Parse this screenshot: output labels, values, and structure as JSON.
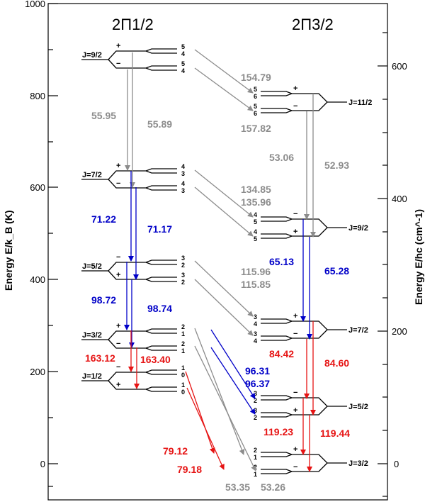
{
  "axes": {
    "left_title": "Energy E/k_B (K)",
    "left_ticks": [
      "1000",
      "800",
      "600",
      "400",
      "200",
      "0"
    ],
    "right_title": "Energy E/hc (cm^-1)",
    "right_ticks": [
      "600",
      "400",
      "200",
      "0"
    ]
  },
  "ladders": {
    "left": {
      "title": "2Π1/2",
      "levels": [
        {
          "label": "J=9/2",
          "upper_parity": "+",
          "lower_parity": "−",
          "upper_hf": [
            "5",
            "4"
          ],
          "lower_hf": [
            "5",
            "4"
          ]
        },
        {
          "label": "J=7/2",
          "upper_parity": "+",
          "lower_parity": "−",
          "upper_hf": [
            "4",
            "3"
          ],
          "lower_hf": [
            "4",
            "3"
          ]
        },
        {
          "label": "J=5/2",
          "upper_parity": "−",
          "lower_parity": "+",
          "upper_hf": [
            "3",
            "2"
          ],
          "lower_hf": [
            "3",
            "2"
          ]
        },
        {
          "label": "J=3/2",
          "upper_parity": "+",
          "lower_parity": "−",
          "upper_hf": [
            "2",
            "1"
          ],
          "lower_hf": [
            "2",
            "1"
          ]
        },
        {
          "label": "J=1/2",
          "upper_parity": "−",
          "lower_parity": "+",
          "upper_hf": [
            "1",
            "0"
          ],
          "lower_hf": [
            "1",
            "0"
          ]
        }
      ]
    },
    "right": {
      "title": "2Π3/2",
      "levels": [
        {
          "label": "J=11/2",
          "upper_parity": "+",
          "lower_parity": "−",
          "upper_hf": [
            "5",
            "6"
          ],
          "lower_hf": [
            "5",
            "6"
          ]
        },
        {
          "label": "J=9/2",
          "upper_parity": "−",
          "lower_parity": "+",
          "upper_hf": [
            "4",
            "5"
          ],
          "lower_hf": [
            "4",
            "5"
          ]
        },
        {
          "label": "J=7/2",
          "upper_parity": "+",
          "lower_parity": "−",
          "upper_hf": [
            "3",
            "4"
          ],
          "lower_hf": [
            "3",
            "4"
          ]
        },
        {
          "label": "J=5/2",
          "upper_parity": "−",
          "lower_parity": "+",
          "upper_hf": [
            "3",
            "2"
          ],
          "lower_hf": [
            "3",
            "2"
          ]
        },
        {
          "label": "J=3/2",
          "upper_parity": "+",
          "lower_parity": "−",
          "upper_hf": [
            "2",
            "1"
          ],
          "lower_hf": [
            "2",
            "1"
          ]
        }
      ]
    }
  },
  "transitions": {
    "gray": [
      "55.95",
      "55.89",
      "154.79",
      "157.82",
      "53.06",
      "52.93",
      "134.85",
      "135.96",
      "115.96",
      "115.85",
      "53.35",
      "53.26"
    ],
    "blue": [
      "71.22",
      "71.17",
      "98.72",
      "98.74",
      "65.13",
      "65.28",
      "96.31",
      "96.37"
    ],
    "red": [
      "163.12",
      "163.40",
      "84.42",
      "84.60",
      "119.23",
      "119.44",
      "79.12",
      "79.18"
    ]
  },
  "colors": {
    "gray": "#8c8c8c",
    "blue": "#0000c8",
    "red": "#e61414"
  }
}
